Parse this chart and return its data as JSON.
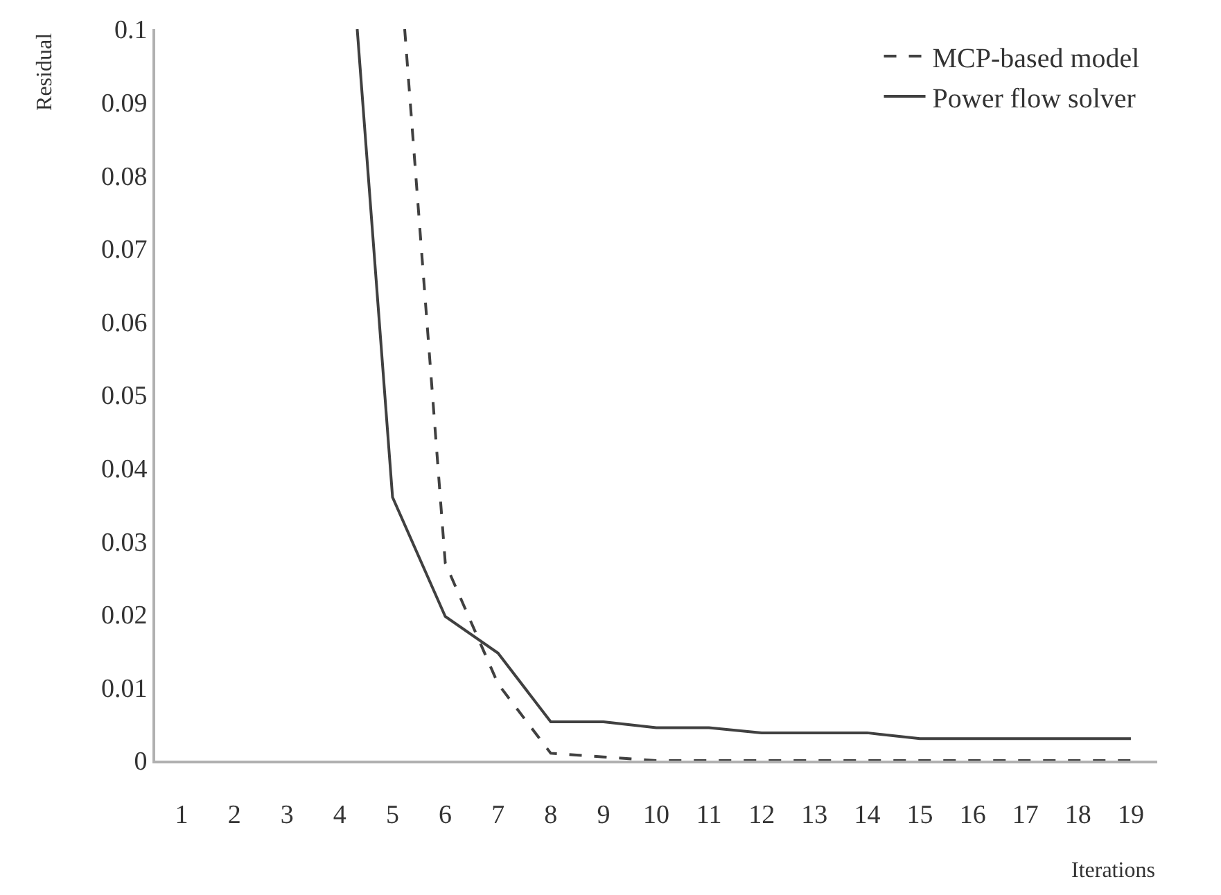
{
  "chart_data": {
    "type": "line",
    "xlabel": "Iterations",
    "ylabel": "Residual",
    "xlim": [
      0.5,
      19.5
    ],
    "xticks": [
      1,
      2,
      3,
      4,
      5,
      6,
      7,
      8,
      9,
      10,
      11,
      12,
      13,
      14,
      15,
      16,
      17,
      18,
      19
    ],
    "ylim": [
      0,
      0.1
    ],
    "yticks": [
      0,
      0.01,
      0.02,
      0.03,
      0.04,
      0.05,
      0.06,
      0.07,
      0.08,
      0.09,
      0.1
    ],
    "legend": "top right",
    "marker": "none",
    "series": [
      {
        "name": "MCP-based model",
        "color": "#404040",
        "line_style": "dashed",
        "x": [
          5.23,
          6,
          7,
          8,
          9,
          10,
          11,
          12,
          13,
          14,
          15,
          16,
          17,
          18,
          19
        ],
        "values": [
          0.1,
          0.027,
          0.0105,
          0.001,
          0.0005,
          0,
          0,
          0,
          0,
          0,
          0,
          0,
          0,
          0,
          0
        ]
      },
      {
        "name": "Power flow solver",
        "color": "#404040",
        "line_style": "solid",
        "x": [
          4.33,
          5,
          6,
          7,
          8,
          9,
          10,
          11,
          12,
          13,
          14,
          15,
          16,
          17,
          18,
          19
        ],
        "values": [
          0.1,
          0.036,
          0.0197,
          0.0147,
          0.0053,
          0.0053,
          0.0045,
          0.0045,
          0.0038,
          0.0038,
          0.0038,
          0.003,
          0.003,
          0.003,
          0.003,
          0.003
        ]
      }
    ]
  }
}
